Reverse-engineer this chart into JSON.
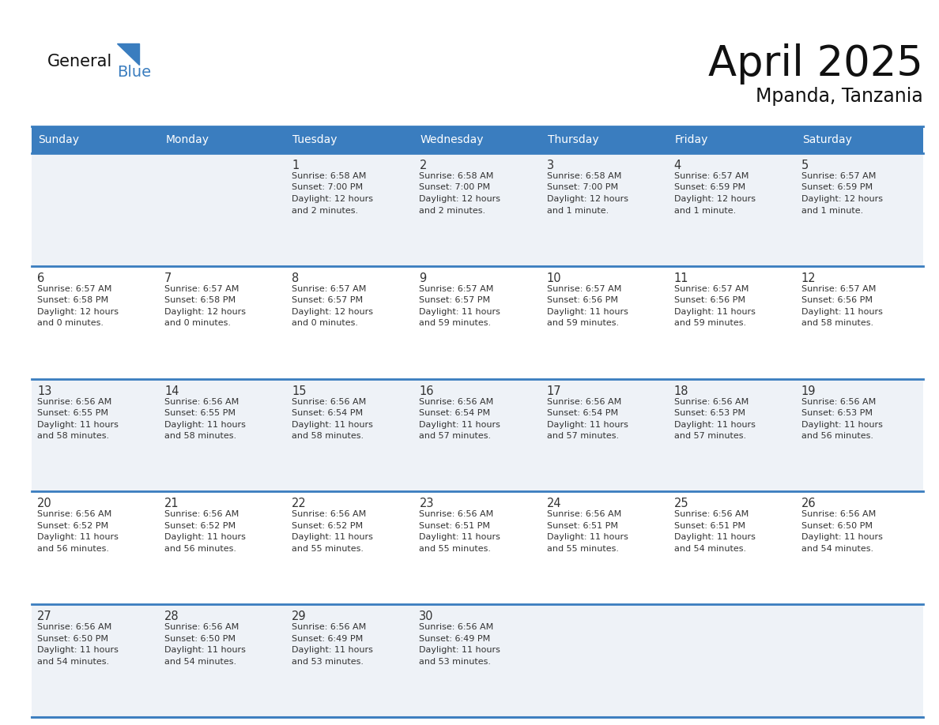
{
  "title": "April 2025",
  "subtitle": "Mpanda, Tanzania",
  "header_bg_color": "#3a7dbf",
  "header_text_color": "#ffffff",
  "cell_bg_even": "#eef2f7",
  "cell_bg_odd": "#ffffff",
  "separator_color": "#3a7dbf",
  "text_color": "#333333",
  "day_num_color": "#333333",
  "day_names": [
    "Sunday",
    "Monday",
    "Tuesday",
    "Wednesday",
    "Thursday",
    "Friday",
    "Saturday"
  ],
  "days_data": [
    {
      "day": null,
      "col": 0,
      "row": 0
    },
    {
      "day": null,
      "col": 1,
      "row": 0
    },
    {
      "day": 1,
      "col": 2,
      "row": 0,
      "sunrise": "6:58 AM",
      "sunset": "7:00 PM",
      "daylight": "12 hours",
      "daylight2": "and 2 minutes."
    },
    {
      "day": 2,
      "col": 3,
      "row": 0,
      "sunrise": "6:58 AM",
      "sunset": "7:00 PM",
      "daylight": "12 hours",
      "daylight2": "and 2 minutes."
    },
    {
      "day": 3,
      "col": 4,
      "row": 0,
      "sunrise": "6:58 AM",
      "sunset": "7:00 PM",
      "daylight": "12 hours",
      "daylight2": "and 1 minute."
    },
    {
      "day": 4,
      "col": 5,
      "row": 0,
      "sunrise": "6:57 AM",
      "sunset": "6:59 PM",
      "daylight": "12 hours",
      "daylight2": "and 1 minute."
    },
    {
      "day": 5,
      "col": 6,
      "row": 0,
      "sunrise": "6:57 AM",
      "sunset": "6:59 PM",
      "daylight": "12 hours",
      "daylight2": "and 1 minute."
    },
    {
      "day": 6,
      "col": 0,
      "row": 1,
      "sunrise": "6:57 AM",
      "sunset": "6:58 PM",
      "daylight": "12 hours",
      "daylight2": "and 0 minutes."
    },
    {
      "day": 7,
      "col": 1,
      "row": 1,
      "sunrise": "6:57 AM",
      "sunset": "6:58 PM",
      "daylight": "12 hours",
      "daylight2": "and 0 minutes."
    },
    {
      "day": 8,
      "col": 2,
      "row": 1,
      "sunrise": "6:57 AM",
      "sunset": "6:57 PM",
      "daylight": "12 hours",
      "daylight2": "and 0 minutes."
    },
    {
      "day": 9,
      "col": 3,
      "row": 1,
      "sunrise": "6:57 AM",
      "sunset": "6:57 PM",
      "daylight": "11 hours",
      "daylight2": "and 59 minutes."
    },
    {
      "day": 10,
      "col": 4,
      "row": 1,
      "sunrise": "6:57 AM",
      "sunset": "6:56 PM",
      "daylight": "11 hours",
      "daylight2": "and 59 minutes."
    },
    {
      "day": 11,
      "col": 5,
      "row": 1,
      "sunrise": "6:57 AM",
      "sunset": "6:56 PM",
      "daylight": "11 hours",
      "daylight2": "and 59 minutes."
    },
    {
      "day": 12,
      "col": 6,
      "row": 1,
      "sunrise": "6:57 AM",
      "sunset": "6:56 PM",
      "daylight": "11 hours",
      "daylight2": "and 58 minutes."
    },
    {
      "day": 13,
      "col": 0,
      "row": 2,
      "sunrise": "6:56 AM",
      "sunset": "6:55 PM",
      "daylight": "11 hours",
      "daylight2": "and 58 minutes."
    },
    {
      "day": 14,
      "col": 1,
      "row": 2,
      "sunrise": "6:56 AM",
      "sunset": "6:55 PM",
      "daylight": "11 hours",
      "daylight2": "and 58 minutes."
    },
    {
      "day": 15,
      "col": 2,
      "row": 2,
      "sunrise": "6:56 AM",
      "sunset": "6:54 PM",
      "daylight": "11 hours",
      "daylight2": "and 58 minutes."
    },
    {
      "day": 16,
      "col": 3,
      "row": 2,
      "sunrise": "6:56 AM",
      "sunset": "6:54 PM",
      "daylight": "11 hours",
      "daylight2": "and 57 minutes."
    },
    {
      "day": 17,
      "col": 4,
      "row": 2,
      "sunrise": "6:56 AM",
      "sunset": "6:54 PM",
      "daylight": "11 hours",
      "daylight2": "and 57 minutes."
    },
    {
      "day": 18,
      "col": 5,
      "row": 2,
      "sunrise": "6:56 AM",
      "sunset": "6:53 PM",
      "daylight": "11 hours",
      "daylight2": "and 57 minutes."
    },
    {
      "day": 19,
      "col": 6,
      "row": 2,
      "sunrise": "6:56 AM",
      "sunset": "6:53 PM",
      "daylight": "11 hours",
      "daylight2": "and 56 minutes."
    },
    {
      "day": 20,
      "col": 0,
      "row": 3,
      "sunrise": "6:56 AM",
      "sunset": "6:52 PM",
      "daylight": "11 hours",
      "daylight2": "and 56 minutes."
    },
    {
      "day": 21,
      "col": 1,
      "row": 3,
      "sunrise": "6:56 AM",
      "sunset": "6:52 PM",
      "daylight": "11 hours",
      "daylight2": "and 56 minutes."
    },
    {
      "day": 22,
      "col": 2,
      "row": 3,
      "sunrise": "6:56 AM",
      "sunset": "6:52 PM",
      "daylight": "11 hours",
      "daylight2": "and 55 minutes."
    },
    {
      "day": 23,
      "col": 3,
      "row": 3,
      "sunrise": "6:56 AM",
      "sunset": "6:51 PM",
      "daylight": "11 hours",
      "daylight2": "and 55 minutes."
    },
    {
      "day": 24,
      "col": 4,
      "row": 3,
      "sunrise": "6:56 AM",
      "sunset": "6:51 PM",
      "daylight": "11 hours",
      "daylight2": "and 55 minutes."
    },
    {
      "day": 25,
      "col": 5,
      "row": 3,
      "sunrise": "6:56 AM",
      "sunset": "6:51 PM",
      "daylight": "11 hours",
      "daylight2": "and 54 minutes."
    },
    {
      "day": 26,
      "col": 6,
      "row": 3,
      "sunrise": "6:56 AM",
      "sunset": "6:50 PM",
      "daylight": "11 hours",
      "daylight2": "and 54 minutes."
    },
    {
      "day": 27,
      "col": 0,
      "row": 4,
      "sunrise": "6:56 AM",
      "sunset": "6:50 PM",
      "daylight": "11 hours",
      "daylight2": "and 54 minutes."
    },
    {
      "day": 28,
      "col": 1,
      "row": 4,
      "sunrise": "6:56 AM",
      "sunset": "6:50 PM",
      "daylight": "11 hours",
      "daylight2": "and 54 minutes."
    },
    {
      "day": 29,
      "col": 2,
      "row": 4,
      "sunrise": "6:56 AM",
      "sunset": "6:49 PM",
      "daylight": "11 hours",
      "daylight2": "and 53 minutes."
    },
    {
      "day": 30,
      "col": 3,
      "row": 4,
      "sunrise": "6:56 AM",
      "sunset": "6:49 PM",
      "daylight": "11 hours",
      "daylight2": "and 53 minutes."
    },
    {
      "day": null,
      "col": 4,
      "row": 4
    },
    {
      "day": null,
      "col": 5,
      "row": 4
    },
    {
      "day": null,
      "col": 6,
      "row": 4
    }
  ]
}
